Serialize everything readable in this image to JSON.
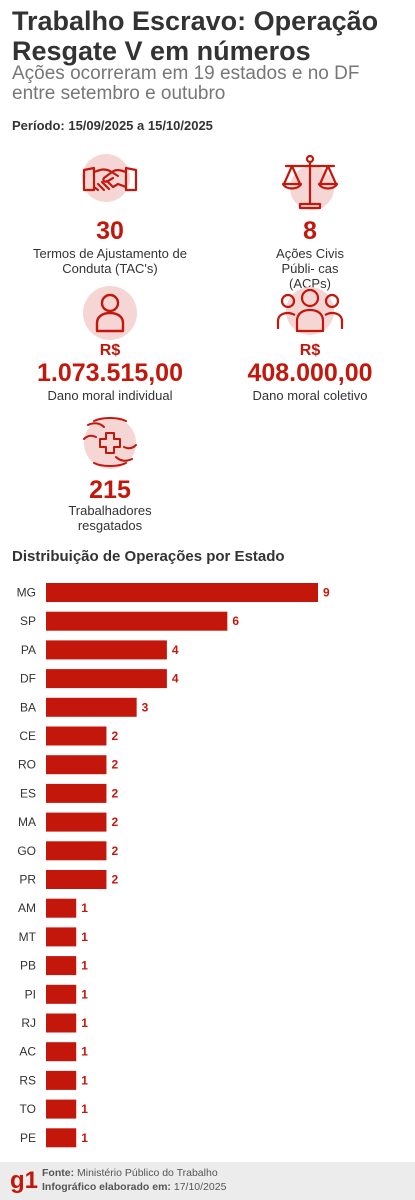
{
  "header": {
    "title": "Trabalho Escravo: Operação Resgate V em números",
    "subtitle": "Ações ocorreram em 19 estados e no DF entre setembro e outubro",
    "period": "Período: 15/09/2025 a 15/10/2025"
  },
  "stats": {
    "tacs": {
      "value": "30",
      "label": "Termos de Ajustamento de Conduta (TAC's)",
      "icon": "handshake-icon"
    },
    "acps": {
      "value": "8",
      "label": "Ações Civis Públi- cas (ACPs)",
      "icon": "scales-icon"
    },
    "individual": {
      "currency": "R$",
      "value": "1.073.515,00",
      "label": "Dano moral individual",
      "icon": "person-icon"
    },
    "collective": {
      "currency": "R$",
      "value": "408.000,00",
      "label": "Dano moral coletivo",
      "icon": "group-icon"
    },
    "rescued": {
      "value": "215",
      "label": "Trabalhadores resgatados",
      "icon": "hands-medical-cross-icon"
    }
  },
  "chart_title": "Distribuição de Operações por Estado",
  "colors": {
    "accent": "#c4170c",
    "text": "#333333",
    "muted": "#777777",
    "icon_bg": "#f5d6d4"
  },
  "chart_data": {
    "type": "bar",
    "orientation": "horizontal",
    "categories": [
      "MG",
      "SP",
      "PA",
      "DF",
      "BA",
      "CE",
      "RO",
      "ES",
      "MA",
      "GO",
      "PR",
      "AM",
      "MT",
      "PB",
      "PI",
      "RJ",
      "AC",
      "RS",
      "TO",
      "PE"
    ],
    "values": [
      9,
      6,
      4,
      4,
      3,
      2,
      2,
      2,
      2,
      2,
      2,
      1,
      1,
      1,
      1,
      1,
      1,
      1,
      1,
      1
    ],
    "title": "Distribuição de Operações por Estado",
    "xlabel": "",
    "ylabel": "",
    "xlim": [
      0,
      9
    ],
    "grid": false,
    "data_labels": true
  },
  "footer": {
    "logo": "g1",
    "source_label": "Fonte:",
    "source_value": "Ministério Público do Trabalho",
    "made_label": "Infográfico elaborado em:",
    "made_value": "17/10/2025"
  }
}
